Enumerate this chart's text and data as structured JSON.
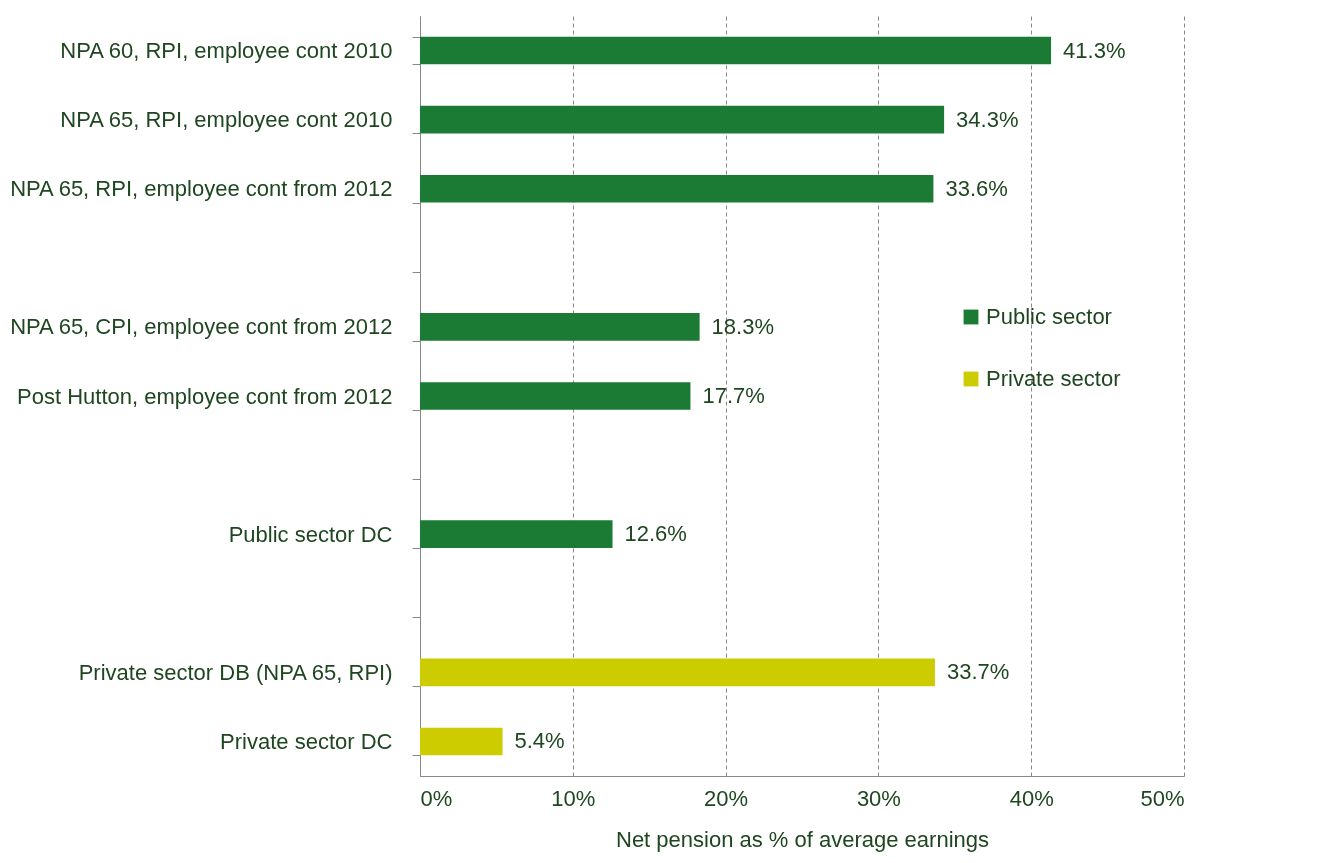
{
  "chart_data": {
    "type": "bar",
    "orientation": "horizontal",
    "xlabel": "Net pension as % of average earnings",
    "categories": [
      "NPA 60, RPI, employee cont 2010",
      "NPA 65, RPI, employee cont 2010",
      "NPA 65, RPI, employee cont from 2012",
      null,
      "NPA 65, CPI, employee cont from 2012",
      "Post Hutton, employee cont from 2012",
      null,
      "Public sector DC",
      null,
      "Private sector DB (NPA 65, RPI)",
      "Private sector DC"
    ],
    "series": [
      {
        "name": "Public sector",
        "color": "#1b7b34",
        "values": [
          41.3,
          34.3,
          33.6,
          null,
          18.3,
          17.7,
          null,
          12.6,
          null,
          null,
          null
        ],
        "value_labels": [
          "41.3%",
          "34.3%",
          "33.6%",
          null,
          "18.3%",
          "17.7%",
          null,
          "12.6%",
          null,
          null,
          null
        ]
      },
      {
        "name": "Private sector",
        "color": "#cccc00",
        "values": [
          null,
          null,
          null,
          null,
          null,
          null,
          null,
          null,
          null,
          33.7,
          5.4
        ],
        "value_labels": [
          null,
          null,
          null,
          null,
          null,
          null,
          null,
          null,
          null,
          "33.7%",
          "5.4%"
        ]
      }
    ],
    "xlim": [
      0,
      50
    ],
    "xticks": [
      {
        "value": 0,
        "label": "0%"
      },
      {
        "value": 10,
        "label": "10%"
      },
      {
        "value": 20,
        "label": "20%"
      },
      {
        "value": 30,
        "label": "30%"
      },
      {
        "value": 40,
        "label": "40%"
      },
      {
        "value": 50,
        "label": "50%"
      }
    ],
    "grid": "x",
    "legend": "right"
  }
}
